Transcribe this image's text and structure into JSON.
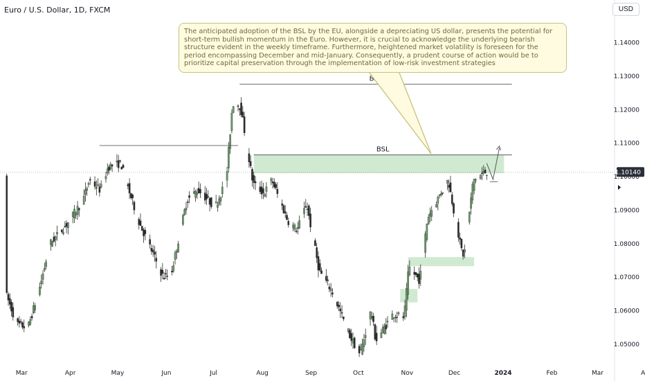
{
  "header": {
    "symbol_title": "Euro / U.S. Dollar, 1D, FXCM",
    "currency": "USD"
  },
  "annotation": {
    "text": "The anticipated adoption of the BSL by the EU, alongside a depreciating US dollar, presents the potential for short-term bullish momentum in the Euro. However, it is crucial to acknowledge the underlying bearish structure evident in the weekly timeframe. Furthermore, heightened market volatility is foreseen for the period encompassing December and mid-January. Consequently, a prudent course of action would be to prioritize capital preservation through the implementation of low-risk investment strategies"
  },
  "colors": {
    "up_candle": "#6a9f6a",
    "down_candle": "#2b2b2b",
    "zone": "#c8e6c9",
    "line": "#5a5a5a",
    "price_badge": "#2a2e39"
  },
  "chart_data": {
    "type": "candlestick",
    "instrument": "EUR/USD",
    "timeframe": "1D",
    "x_axis_labels": [
      "Mar",
      "Apr",
      "May",
      "Jun",
      "Jul",
      "Aug",
      "Sep",
      "Oct",
      "Nov",
      "Dec",
      "2024",
      "Feb",
      "Mar",
      "Apr"
    ],
    "y_ticks": [
      "1.14000",
      "1.13000",
      "1.12000",
      "1.11000",
      "1.10000",
      "1.09000",
      "1.08000",
      "1.07000",
      "1.06000",
      "1.05000"
    ],
    "ylim": [
      1.044,
      1.149
    ],
    "current_price": "1.10140",
    "current_price_value": 1.1014,
    "anchors": [
      [
        "2023-02-20",
        1.065
      ],
      [
        "2023-02-27",
        1.056
      ],
      [
        "2023-03-06",
        1.055
      ],
      [
        "2023-03-13",
        1.066
      ],
      [
        "2023-03-20",
        1.08
      ],
      [
        "2023-03-31",
        1.086
      ],
      [
        "2023-04-10",
        1.093
      ],
      [
        "2023-04-14",
        1.099
      ],
      [
        "2023-04-21",
        1.096
      ],
      [
        "2023-04-26",
        1.103
      ],
      [
        "2023-05-04",
        1.104
      ],
      [
        "2023-05-09",
        1.096
      ],
      [
        "2023-05-16",
        1.086
      ],
      [
        "2023-05-31",
        1.07
      ],
      [
        "2023-06-05",
        1.071
      ],
      [
        "2023-06-15",
        1.093
      ],
      [
        "2023-06-22",
        1.096
      ],
      [
        "2023-07-03",
        1.091
      ],
      [
        "2023-07-10",
        1.099
      ],
      [
        "2023-07-14",
        1.122
      ],
      [
        "2023-07-19",
        1.121
      ],
      [
        "2023-07-27",
        1.098
      ],
      [
        "2023-08-03",
        1.095
      ],
      [
        "2023-08-08",
        1.099
      ],
      [
        "2023-08-18",
        1.087
      ],
      [
        "2023-08-24",
        1.084
      ],
      [
        "2023-08-30",
        1.092
      ],
      [
        "2023-09-07",
        1.072
      ],
      [
        "2023-09-15",
        1.066
      ],
      [
        "2023-09-27",
        1.052
      ],
      [
        "2023-10-03",
        1.047
      ],
      [
        "2023-10-10",
        1.06
      ],
      [
        "2023-10-13",
        1.051
      ],
      [
        "2023-10-24",
        1.059
      ],
      [
        "2023-10-31",
        1.058
      ],
      [
        "2023-11-03",
        1.073
      ],
      [
        "2023-11-10",
        1.069
      ],
      [
        "2023-11-15",
        1.088
      ],
      [
        "2023-11-28",
        1.099
      ],
      [
        "2023-12-06",
        1.079
      ],
      [
        "2023-12-08",
        1.076
      ],
      [
        "2023-12-14",
        1.099
      ],
      [
        "2023-12-22",
        1.1015
      ]
    ],
    "price_lines": [
      {
        "label": "BSL",
        "start_date": "2023-07-18",
        "end_date": "2024-01-07",
        "price": 1.1276
      },
      {
        "label": "BSL",
        "start_date": "2023-07-27",
        "end_date": "2024-01-07",
        "price": 1.1065
      },
      {
        "label": "",
        "start_date": "2023-04-20",
        "end_date": "2023-07-17",
        "price": 1.1093
      },
      {
        "label": "",
        "start_date": "2023-12-24",
        "end_date": "2023-12-29",
        "price": 1.0985
      }
    ],
    "zones": [
      {
        "start_date": "2023-07-27",
        "end_date": "2024-01-02",
        "top": 1.1065,
        "bottom": 1.101
      },
      {
        "start_date": "2023-11-02",
        "end_date": "2023-12-14",
        "top": 1.076,
        "bottom": 1.0733
      },
      {
        "start_date": "2023-10-28",
        "end_date": "2023-11-08",
        "top": 1.0665,
        "bottom": 1.0625
      }
    ]
  }
}
